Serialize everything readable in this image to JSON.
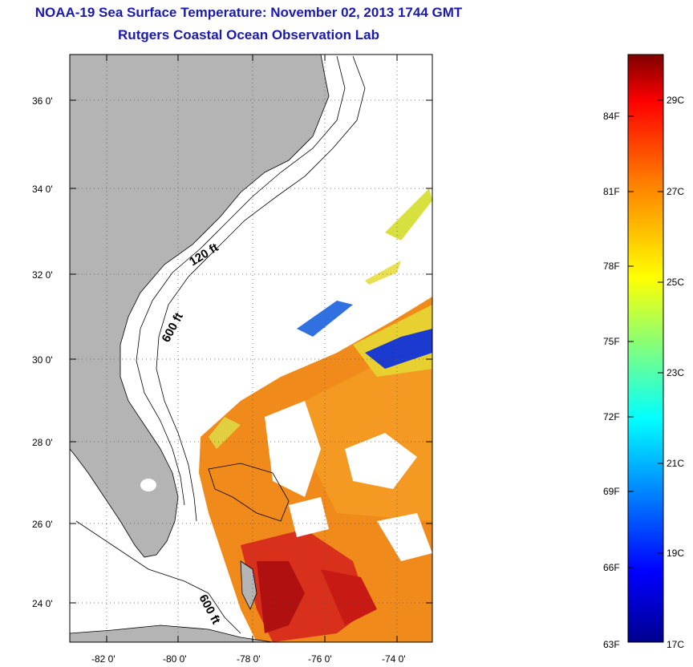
{
  "title": "NOAA-19 Sea Surface Temperature:  November 02, 2013 1744 GMT",
  "subtitle": "Rutgers Coastal Ocean Observation Lab",
  "map": {
    "lat_labels": [
      "24 0'",
      "26 0'",
      "28 0'",
      "30 0'",
      "32 0'",
      "34 0'",
      "36 0'"
    ],
    "lon_labels": [
      "-82 0'",
      "-80 0'",
      "-78 0'",
      "-76 0'",
      "-74 0'"
    ],
    "contours": [
      "120 ft",
      "600 ft",
      "600 ft"
    ],
    "land_color": "#b4b4b4"
  },
  "colorbar": {
    "fahrenheit_labels": [
      "84F",
      "81F",
      "78F",
      "75F",
      "72F",
      "69F",
      "66F",
      "63F"
    ],
    "celsius_labels": [
      "29C",
      "27C",
      "25C",
      "23C",
      "21C",
      "19C",
      "17C"
    ],
    "colors": [
      "#7f0000",
      "#ff0000",
      "#ff8000",
      "#ffff00",
      "#00ffff",
      "#0000ff",
      "#00008f"
    ]
  }
}
